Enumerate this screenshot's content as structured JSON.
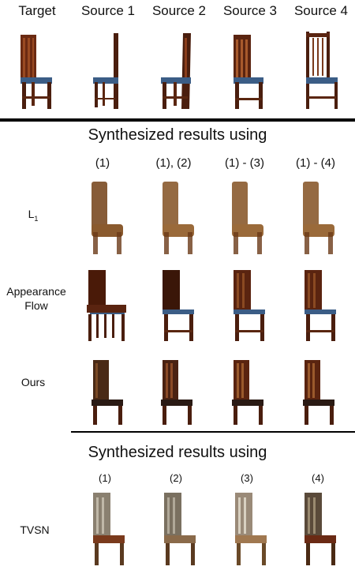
{
  "top_headers": [
    "Target",
    "Source 1",
    "Source 2",
    "Source 3",
    "Source 4"
  ],
  "section1": {
    "title": "Synthesized results using",
    "columns": [
      "(1)",
      "(1), (2)",
      "(1) - (3)",
      "(1) - (4)"
    ],
    "rows": [
      {
        "label": "L",
        "subscript": "1"
      },
      {
        "label_lines": [
          "Appearance",
          "Flow"
        ]
      },
      {
        "label": "Ours"
      }
    ]
  },
  "section2": {
    "title": "Synthesized results using",
    "columns": [
      "(1)",
      "(2)",
      "(3)",
      "(4)"
    ],
    "rows": [
      {
        "label": "TVSN"
      }
    ]
  },
  "colors": {
    "wood_dark": "#4a1e0e",
    "wood_mid": "#7a3a1c",
    "wood_light": "#a86a3c",
    "seat_blue": "#3b5d86",
    "blurred": "#8a5a2e"
  }
}
